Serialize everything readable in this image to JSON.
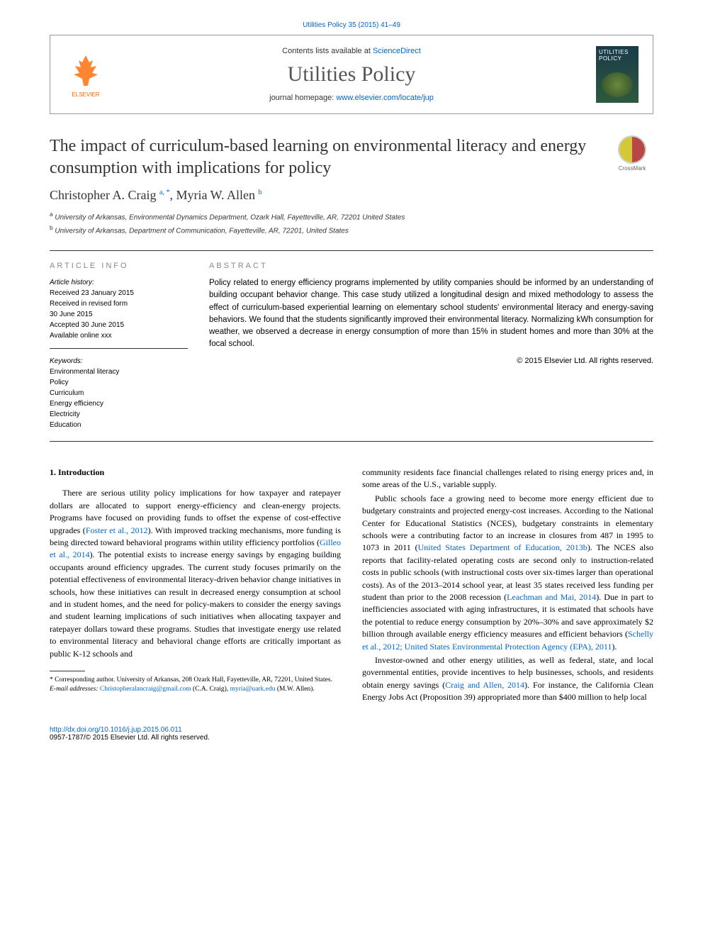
{
  "citation": "Utilities Policy 35 (2015) 41–49",
  "header": {
    "contents_prefix": "Contents lists available at ",
    "contents_link": "ScienceDirect",
    "journal_name": "Utilities Policy",
    "homepage_prefix": "journal homepage: ",
    "homepage_link": "www.elsevier.com/locate/jup",
    "publisher": "ELSEVIER",
    "cover_title": "UTILITIES POLICY"
  },
  "title": "The impact of curriculum-based learning on environmental literacy and energy consumption with implications for policy",
  "crossmark": "CrossMark",
  "authors_html": "Christopher A. Craig <sup>a, *</sup>, Myria W. Allen <sup>b</sup>",
  "affiliations": [
    {
      "sup": "a",
      "text": "University of Arkansas, Environmental Dynamics Department, Ozark Hall, Fayetteville, AR, 72201 United States"
    },
    {
      "sup": "b",
      "text": "University of Arkansas, Department of Communication, Fayetteville, AR, 72201, United States"
    }
  ],
  "info": {
    "heading": "ARTICLE INFO",
    "history_label": "Article history:",
    "history": [
      "Received 23 January 2015",
      "Received in revised form",
      "30 June 2015",
      "Accepted 30 June 2015",
      "Available online xxx"
    ],
    "keywords_label": "Keywords:",
    "keywords": [
      "Environmental literacy",
      "Policy",
      "Curriculum",
      "Energy efficiency",
      "Electricity",
      "Education"
    ]
  },
  "abstract": {
    "heading": "ABSTRACT",
    "text": "Policy related to energy efficiency programs implemented by utility companies should be informed by an understanding of building occupant behavior change. This case study utilized a longitudinal design and mixed methodology to assess the effect of curriculum-based experiential learning on elementary school students' environmental literacy and energy-saving behaviors. We found that the students significantly improved their environmental literacy. Normalizing kWh consumption for weather, we observed a decrease in energy consumption of more than 15% in student homes and more than 30% at the focal school.",
    "copyright": "© 2015 Elsevier Ltd. All rights reserved."
  },
  "section1": {
    "heading": "1. Introduction",
    "para1_pre": "There are serious utility policy implications for how taxpayer and ratepayer dollars are allocated to support energy-efficiency and clean-energy projects. Programs have focused on providing funds to offset the expense of cost-effective upgrades (",
    "cite1": "Foster et al., 2012",
    "para1_mid1": "). With improved tracking mechanisms, more funding is being directed toward behavioral programs within utility efficiency portfolios (",
    "cite2": "Gilleo et al., 2014",
    "para1_post": "). The potential exists to increase energy savings by engaging building occupants around efficiency upgrades. The current study focuses primarily on the potential effectiveness of environmental literacy-driven behavior change initiatives in schools, how these initiatives can result in decreased energy consumption at school and in student homes, and the need for policy-makers to consider the energy savings and student learning implications of such initiatives when allocating taxpayer and ratepayer dollars toward these programs. Studies that investigate energy use related to environmental literacy and behavioral change efforts are critically important as public K-12 schools and",
    "para2": "community residents face financial challenges related to rising energy prices and, in some areas of the U.S., variable supply.",
    "para3_pre": "Public schools face a growing need to become more energy efficient due to budgetary constraints and projected energy-cost increases. According to the National Center for Educational Statistics (NCES), budgetary constraints in elementary schools were a contributing factor to an increase in closures from 487 in 1995 to 1073 in 2011 (",
    "cite3": "United States Department of Education, 2013b",
    "para3_mid1": "). The NCES also reports that facility-related operating costs are second only to instruction-related costs in public schools (with instructional costs over six-times larger than operational costs). As of the 2013–2014 school year, at least 35 states received less funding per student than prior to the 2008 recession (",
    "cite4": "Leachman and Mai, 2014",
    "para3_mid2": "). Due in part to inefficiencies associated with aging infrastructures, it is estimated that schools have the potential to reduce energy consumption by 20%–30% and save approximately $2 billion through available energy efficiency measures and efficient behaviors (",
    "cite5": "Schelly et al., 2012; United States Environmental Protection Agency (EPA), 2011",
    "para3_post": ").",
    "para4_pre": "Investor-owned and other energy utilities, as well as federal, state, and local governmental entities, provide incentives to help businesses, schools, and residents obtain energy savings (",
    "cite6": "Craig and Allen, 2014",
    "para4_post": "). For instance, the California Clean Energy Jobs Act (Proposition 39) appropriated more than $400 million to help local"
  },
  "footnotes": {
    "corr": "* Corresponding author. University of Arkansas, 208 Ozark Hall, Fayetteville, AR, 72201, United States.",
    "email_label": "E-mail addresses: ",
    "email1": "Christopheralancraig@gmail.com",
    "email1_who": " (C.A. Craig), ",
    "email2": "myria@uark.edu",
    "email2_who": " (M.W. Allen)."
  },
  "doi": {
    "url": "http://dx.doi.org/10.1016/j.jup.2015.06.011",
    "issn_copyright": "0957-1787/© 2015 Elsevier Ltd. All rights reserved."
  },
  "colors": {
    "link": "#0066cc",
    "text": "#333333",
    "publisher": "#ff6600"
  }
}
